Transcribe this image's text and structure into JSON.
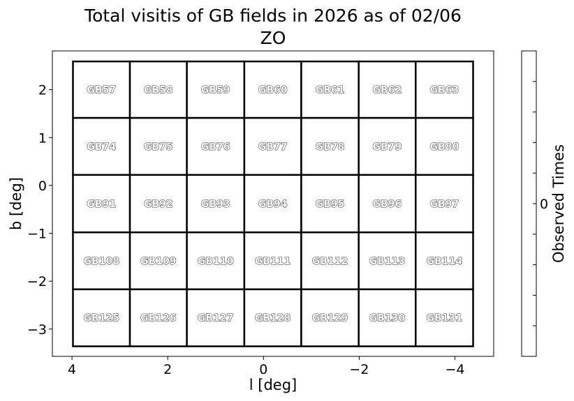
{
  "chart_data": {
    "type": "heatmap",
    "title": "Total visitis of GB fields in 2026 as of 02/06",
    "subtitle": "ZO",
    "xlabel": "l [deg]",
    "ylabel": "b [deg]",
    "xlim": [
      4.41,
      -4.81
    ],
    "ylim": [
      -3.57,
      2.81
    ],
    "xticks": [
      4,
      2,
      0,
      -2,
      -4
    ],
    "xtick_labels": [
      "4",
      "2",
      "0",
      "−2",
      "−4"
    ],
    "yticks": [
      2,
      1,
      0,
      -1,
      -2,
      -3
    ],
    "ytick_labels": [
      "2",
      "1",
      "0",
      "−1",
      "−2",
      "−3"
    ],
    "grid": false,
    "l_edges": [
      3.98,
      2.79,
      1.6,
      0.4,
      -0.79,
      -1.99,
      -3.18,
      -4.38
    ],
    "b_edges": [
      2.59,
      1.41,
      0.22,
      -0.98,
      -2.17,
      -3.36
    ],
    "fields": [
      [
        "GB57",
        "GB58",
        "GB59",
        "GB60",
        "GB61",
        "GB62",
        "GB63"
      ],
      [
        "GB74",
        "GB75",
        "GB76",
        "GB77",
        "GB78",
        "GB79",
        "GB80"
      ],
      [
        "GB91",
        "GB92",
        "GB93",
        "GB94",
        "GB95",
        "GB96",
        "GB97"
      ],
      [
        "GB108",
        "GB109",
        "GB110",
        "GB111",
        "GB112",
        "GB113",
        "GB114"
      ],
      [
        "GB125",
        "GB126",
        "GB127",
        "GB128",
        "GB129",
        "GB130",
        "GB131"
      ]
    ],
    "values": [
      [
        0,
        0,
        0,
        0,
        0,
        0,
        0
      ],
      [
        0,
        0,
        0,
        0,
        0,
        0,
        0
      ],
      [
        0,
        0,
        0,
        0,
        0,
        0,
        0
      ],
      [
        0,
        0,
        0,
        0,
        0,
        0,
        0
      ],
      [
        0,
        0,
        0,
        0,
        0,
        0,
        0
      ]
    ],
    "colorbar": {
      "label": "Observed Times",
      "tick_labels": [
        "0"
      ]
    }
  }
}
